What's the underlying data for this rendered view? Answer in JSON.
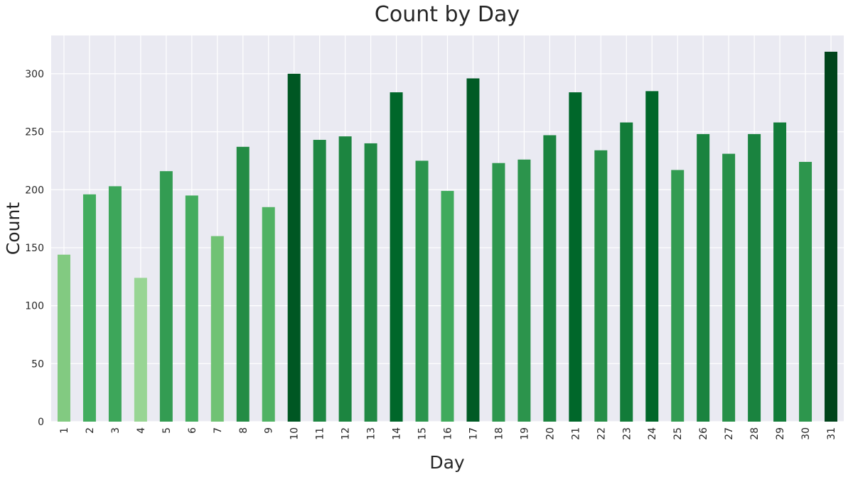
{
  "chart_data": {
    "type": "bar",
    "title": "Count by Day",
    "xlabel": "Day",
    "ylabel": "Count",
    "categories": [
      "1",
      "2",
      "3",
      "4",
      "5",
      "6",
      "7",
      "8",
      "9",
      "10",
      "11",
      "12",
      "13",
      "14",
      "15",
      "16",
      "17",
      "18",
      "19",
      "20",
      "21",
      "22",
      "23",
      "24",
      "25",
      "26",
      "27",
      "28",
      "29",
      "30",
      "31"
    ],
    "values": [
      144,
      196,
      203,
      124,
      216,
      195,
      160,
      237,
      185,
      300,
      243,
      246,
      240,
      284,
      225,
      199,
      296,
      223,
      226,
      247,
      284,
      234,
      258,
      285,
      217,
      248,
      231,
      248,
      258,
      224,
      319
    ],
    "ylim": [
      0,
      333
    ],
    "yticks": [
      0,
      50,
      100,
      150,
      200,
      250,
      300
    ],
    "grid": true,
    "colormap": "Greens",
    "plot_background": "#eaeaf2",
    "grid_color": "#ffffff"
  }
}
